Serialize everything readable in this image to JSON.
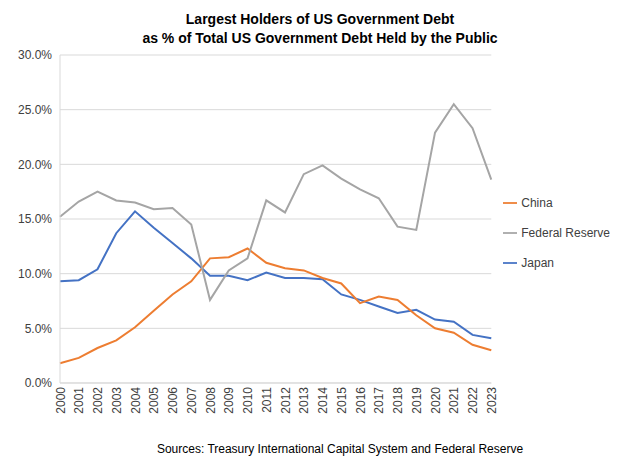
{
  "chart_data": {
    "type": "line",
    "title": "Largest Holders of US Government Debt",
    "subtitle": "as % of Total US Government Debt Held by the Public",
    "source": "Sources: Treasury International Capital System and Federal Reserve",
    "categories": [
      "2000",
      "2001",
      "2002",
      "2003",
      "2004",
      "2005",
      "2006",
      "2007",
      "2008",
      "2009",
      "2010",
      "2011",
      "2012",
      "2013",
      "2014",
      "2015",
      "2016",
      "2017",
      "2018",
      "2019",
      "2020",
      "2021",
      "2022",
      "2023"
    ],
    "series": [
      {
        "name": "Japan",
        "color": "#4472c4",
        "marker": "none",
        "line_style": "solid",
        "values": [
          9.3,
          9.4,
          10.4,
          13.7,
          15.7,
          14.2,
          12.8,
          11.4,
          9.8,
          9.8,
          9.4,
          10.1,
          9.6,
          9.6,
          9.5,
          8.1,
          7.6,
          7.0,
          6.4,
          6.7,
          5.8,
          5.6,
          4.4,
          4.1
        ]
      },
      {
        "name": "China",
        "color": "#ed7d31",
        "marker": "none",
        "line_style": "solid",
        "values": [
          1.8,
          2.3,
          3.2,
          3.9,
          5.1,
          6.6,
          8.1,
          9.3,
          11.4,
          11.5,
          12.3,
          11.0,
          10.5,
          10.3,
          9.6,
          9.1,
          7.3,
          7.9,
          7.6,
          6.2,
          5.0,
          4.6,
          3.5,
          3.0
        ]
      },
      {
        "name": "Federal Reserve",
        "color": "#a5a5a5",
        "marker": "none",
        "line_style": "solid",
        "values": [
          15.2,
          16.6,
          17.5,
          16.7,
          16.5,
          15.9,
          16.0,
          14.5,
          7.6,
          10.3,
          11.4,
          16.7,
          15.6,
          19.1,
          19.9,
          18.7,
          17.7,
          16.9,
          14.3,
          14.0,
          22.9,
          25.5,
          23.3,
          18.6
        ]
      }
    ],
    "ylim": [
      0,
      30
    ],
    "yticks": [
      {
        "value": 0,
        "label": "0.0%"
      },
      {
        "value": 5,
        "label": "5.0%"
      },
      {
        "value": 10,
        "label": "10.0%"
      },
      {
        "value": 15,
        "label": "15.0%"
      },
      {
        "value": 20,
        "label": "20.0%"
      },
      {
        "value": 25,
        "label": "25.0%"
      },
      {
        "value": 30,
        "label": "30.0%"
      }
    ],
    "grid": true,
    "legend": "right"
  }
}
